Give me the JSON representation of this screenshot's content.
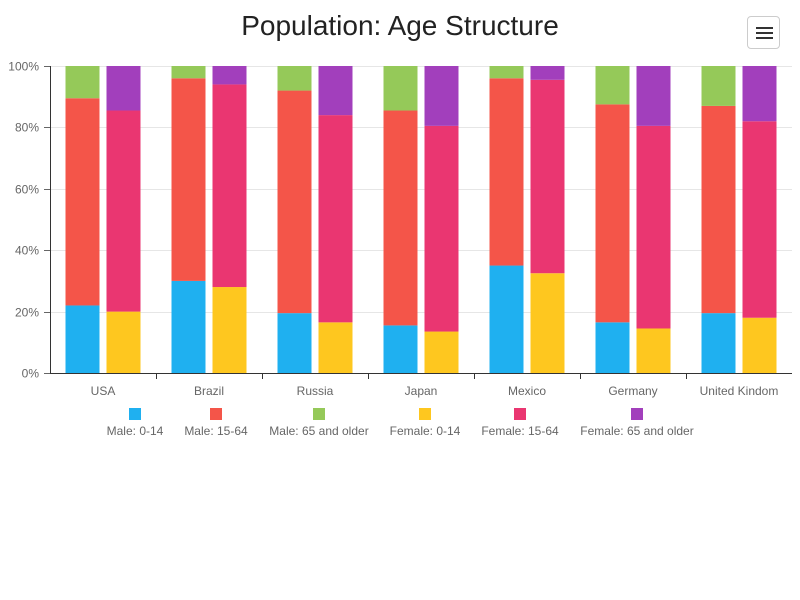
{
  "title": "Population: Age Structure",
  "menu": {
    "icon": "hamburger-menu-icon"
  },
  "chart_data": {
    "type": "bar",
    "stacked": true,
    "percent": true,
    "title": "Population: Age Structure",
    "categories": [
      "USA",
      "Brazil",
      "Russia",
      "Japan",
      "Mexico",
      "Germany",
      "United Kindom"
    ],
    "ylim": [
      0,
      100
    ],
    "yticks": [
      "0%",
      "20%",
      "40%",
      "60%",
      "80%",
      "100%"
    ],
    "grid": true,
    "legend_position": "bottom",
    "groups": [
      {
        "name": "Male",
        "series": [
          {
            "name": "Male: 0-14",
            "color": "#1fb0f0",
            "values": [
              22,
              30,
              19.5,
              15.5,
              35,
              16.5,
              19.5
            ]
          },
          {
            "name": "Male: 15-64",
            "color": "#f45549",
            "values": [
              67.5,
              66,
              72.5,
              70,
              61,
              71,
              67.5
            ]
          },
          {
            "name": "Male: 65 and older",
            "color": "#95c959",
            "values": [
              10.5,
              4,
              8,
              14.5,
              4,
              12.5,
              13
            ]
          }
        ]
      },
      {
        "name": "Female",
        "series": [
          {
            "name": "Female: 0-14",
            "color": "#fec71f",
            "values": [
              20,
              28,
              16.5,
              13.5,
              32.5,
              14.5,
              18
            ]
          },
          {
            "name": "Female: 15-64",
            "color": "#ea3671",
            "values": [
              65.5,
              66,
              67.5,
              67,
              63,
              66,
              64
            ]
          },
          {
            "name": "Female: 65 and older",
            "color": "#a23fbc",
            "values": [
              14.5,
              6,
              16,
              19.5,
              4.5,
              19.5,
              18
            ]
          }
        ]
      }
    ]
  }
}
